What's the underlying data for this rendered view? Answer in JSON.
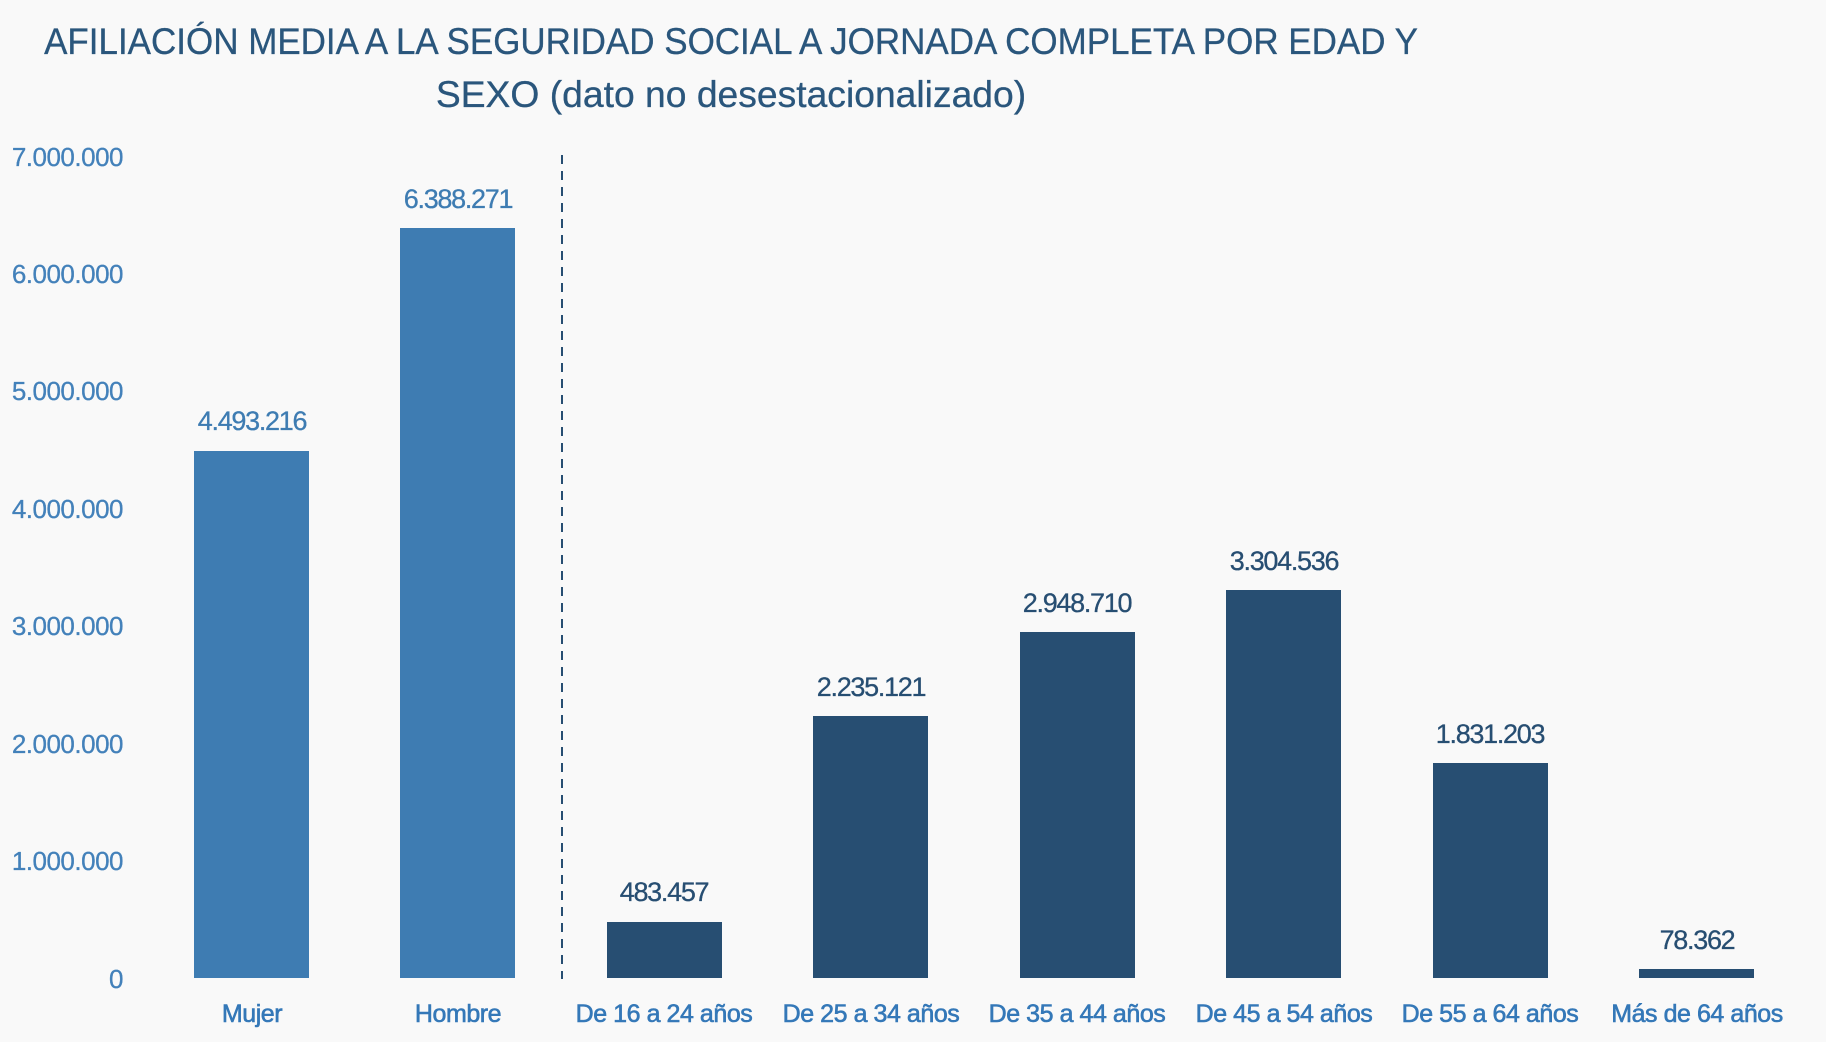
{
  "title": {
    "line1": "AFILIACIÓN MEDIA A LA SEGURIDAD SOCIAL A JORNADA COMPLETA POR EDAD Y",
    "line2": "SEXO (dato no desestacionalizado)",
    "full": "AFILIACIÓN MEDIA A LA SEGURIDAD SOCIAL A JORNADA COMPLETA POR EDAD Y SEXO (dato no desestacionalizado)"
  },
  "chart_data": {
    "type": "bar",
    "title": "AFILIACIÓN MEDIA A LA SEGURIDAD SOCIAL A JORNADA COMPLETA POR EDAD Y SEXO (dato no desestacionalizado)",
    "categories": [
      "Mujer",
      "Hombre",
      "De 16 a 24 años",
      "De 25 a 34 años",
      "De 35 a 44 años",
      "De 45 a 54 años",
      "De 55 a 64 años",
      "Más de 64 años"
    ],
    "values": [
      4493216,
      6388271,
      483457,
      2235121,
      2948710,
      3304536,
      1831203,
      78362
    ],
    "data_labels": [
      "4.493.216",
      "6.388.271",
      "483.457",
      "2.235.121",
      "2.948.710",
      "3.304.536",
      "1.831.203",
      "78.362"
    ],
    "groups": [
      "sexo",
      "sexo",
      "edad",
      "edad",
      "edad",
      "edad",
      "edad",
      "edad"
    ],
    "group_colors": {
      "sexo": "#3E7CB2",
      "edad": "#274E72"
    },
    "xlabel": "",
    "ylabel": "",
    "ylim": [
      0,
      7000000
    ],
    "ytick_interval": 1000000,
    "ytick_labels": [
      "0",
      "1.000.000",
      "2.000.000",
      "3.000.000",
      "4.000.000",
      "5.000.000",
      "6.000.000",
      "7.000.000"
    ],
    "grid": false,
    "legend": "none",
    "separator_after_category": "Hombre",
    "separator_style": "dashed"
  },
  "colors": {
    "background": "#F9F9F9",
    "title_text": "#2A567C",
    "ytick_text": "#4381BA",
    "category_text": "#3478B8",
    "bar_sexo": "#3E7CB2",
    "bar_edad": "#274E72",
    "separator_line": "#274E72"
  }
}
